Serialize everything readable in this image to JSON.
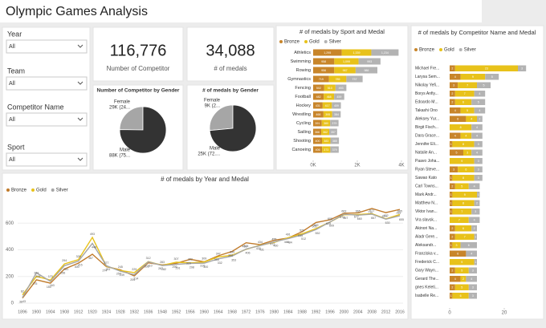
{
  "header": {
    "title": "Olympic Games Analysis"
  },
  "slicers": [
    {
      "label": "Year",
      "value": "All"
    },
    {
      "label": "Team",
      "value": "All"
    },
    {
      "label": "Competitor Name",
      "value": "All"
    },
    {
      "label": "Sport",
      "value": "All"
    }
  ],
  "cards": [
    {
      "value": "116,776",
      "label": "Number of Competitor"
    },
    {
      "value": "34,088",
      "label": "# of medals"
    }
  ],
  "chart_data": [
    {
      "type": "pie",
      "title": "Number of Competitor by Gender",
      "categories": [
        "Female",
        "Male"
      ],
      "values": [
        29000,
        88000
      ],
      "value_labels": [
        "29K (24...",
        "88K (75..."
      ],
      "colors": [
        "#a6a6a6",
        "#333333"
      ]
    },
    {
      "type": "pie",
      "title": "# of medals by Gender",
      "categories": [
        "Female",
        "Male"
      ],
      "values": [
        9000,
        25000
      ],
      "value_labels": [
        "9K (2...",
        "25K (72...."
      ],
      "colors": [
        "#a6a6a6",
        "#333333"
      ]
    },
    {
      "type": "bar",
      "orientation": "horizontal",
      "stacked": true,
      "title": "# of medals by Sport and Medal",
      "categories": [
        "Athletics",
        "Swimming",
        "Rowing",
        "Gymnastics",
        "Fencing",
        "Football",
        "Hockey",
        "Wrestling",
        "Cycling",
        "Sailing",
        "Shooting",
        "Canoeing"
      ],
      "series": [
        {
          "name": "Bronze",
          "color": "#c8852a",
          "values": [
            1295,
            958,
            956,
            719,
            502,
            482,
            431,
            468,
            391,
            366,
            400,
            406
          ],
          "value_labels": [
            "1,295",
            "958",
            "956",
            "719",
            "502",
            "482",
            "431",
            "468",
            "391",
            "366",
            "400",
            "406"
          ]
        },
        {
          "name": "Gold",
          "color": "#e8c21a",
          "values": [
            1339,
            1099,
            967,
            785,
            510,
            468,
            417,
            395,
            380,
            362,
            383,
            373
          ],
          "value_labels": [
            "1,339",
            "1,099",
            "967",
            "785",
            "510",
            "468",
            "417",
            "395",
            "380",
            "362",
            "383",
            "373"
          ]
        },
        {
          "name": "Silver",
          "color": "#b3b3b3",
          "values": [
            1234,
            993,
            986,
            737,
            493,
            459,
            409,
            384,
            379,
            357,
            385,
            379
          ],
          "value_labels": [
            "1,234",
            "993",
            "986",
            "737",
            "493",
            "459",
            "409",
            "384",
            "379",
            "357",
            "385",
            "379"
          ]
        }
      ],
      "xlim": [
        0,
        4000
      ],
      "xticks": [
        {
          "value": 0,
          "label": "0K"
        },
        {
          "value": 2000,
          "label": "2K"
        },
        {
          "value": 4000,
          "label": "4K"
        }
      ]
    },
    {
      "type": "bar",
      "orientation": "horizontal",
      "stacked": true,
      "title": "# of medals by Competitor Name and Medal",
      "categories": [
        "Michael Fre...",
        "Larysa Sem...",
        "Nikolay Yefi...",
        "Borys Anfiy...",
        "Edoardo M...",
        "Takashi Ono",
        "Aleksey Yur...",
        "Birgit Fisch...",
        "Dara Grace...",
        "Jennifer Eli...",
        "Natalie An...",
        "Paavo Joha...",
        "Ryan Steve...",
        "Sawao Kato",
        "Carl Towns...",
        "Mark Andr...",
        "Matthew N...",
        "Viktor Ivan...",
        "Vra slavsk...",
        "Akinori Na...",
        "Aladr Gere...",
        "Aleksandr...",
        "Franziska v...",
        "Frederick C...",
        "Gary Wayn...",
        "Gerard The...",
        "gnes Keleti...",
        "Isabelle Re..."
      ],
      "series": [
        {
          "name": "Bronze",
          "color": "#c8852a",
          "values": [
            2,
            4,
            3,
            2,
            2,
            4,
            6,
            null,
            4,
            1,
            5,
            null,
            3,
            1,
            2,
            1,
            1,
            1,
            null,
            2,
            2,
            1,
            6,
            null,
            2,
            4,
            2,
            1
          ]
        },
        {
          "name": "Gold",
          "color": "#e8c21a",
          "values": [
            23,
            9,
            7,
            7,
            6,
            5,
            4,
            8,
            4,
            8,
            3,
            9,
            6,
            8,
            5,
            9,
            8,
            7,
            7,
            6,
            7,
            3,
            null,
            9,
            5,
            2,
            5,
            6
          ]
        },
        {
          "name": "Silver",
          "color": "#b3b3b3",
          "values": [
            3,
            5,
            5,
            4,
            5,
            4,
            2,
            4,
            4,
            3,
            4,
            3,
            3,
            3,
            4,
            1,
            2,
            3,
            4,
            2,
            1,
            6,
            4,
            1,
            3,
            4,
            3,
            3
          ]
        }
      ],
      "xlim": [
        0,
        30
      ],
      "xticks": [
        0,
        20
      ]
    },
    {
      "type": "line",
      "title": "# of medals by Year and Medal",
      "categories": [
        1896,
        1900,
        1904,
        1908,
        1912,
        1920,
        1924,
        1928,
        1932,
        1936,
        1948,
        1952,
        1956,
        1960,
        1964,
        1968,
        1972,
        1976,
        1980,
        1984,
        1988,
        1992,
        1996,
        2000,
        2004,
        2008,
        2012,
        2016
      ],
      "series": [
        {
          "name": "Bronze",
          "color": "#c07a2a",
          "values": [
            38,
            175,
            150,
            256,
            300,
            367,
            274,
            250,
            204,
            303,
            287,
            299,
            329,
            310,
            355,
            388,
            453,
            439,
            472,
            488,
            535,
            605,
            625,
            674,
            677,
            710,
            679,
            703
          ]
        },
        {
          "name": "Gold",
          "color": "#e8c21a",
          "values": [
            62,
            201,
            173,
            294,
            326,
            493,
            277,
            245,
            229,
            312,
            283,
            307,
            302,
            309,
            347,
            359,
            404,
            434,
            455,
            491,
            520,
            559,
            608,
            663,
            665,
            671,
            632,
            665
          ]
        },
        {
          "name": "Silver",
          "color": "#a6a6a6",
          "values": [
            43,
            228,
            163,
            281,
            315,
            448,
            281,
            239,
            214,
            310,
            282,
            291,
            298,
            300,
            332,
            353,
            406,
            431,
            460,
            484,
            512,
            552,
            609,
            667,
            660,
            667,
            630,
            655
          ]
        }
      ],
      "ylim": [
        0,
        800
      ],
      "yticks": [
        0,
        200,
        400,
        600
      ],
      "grid": true
    }
  ]
}
